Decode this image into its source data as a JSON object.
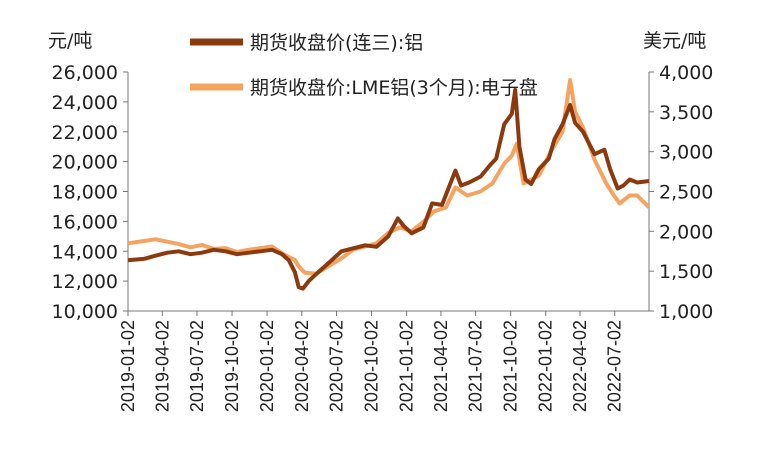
{
  "chart_data": {
    "type": "line",
    "left_unit": "元/吨",
    "right_unit": "美元/吨",
    "left_ylim": [
      10000,
      26000
    ],
    "right_ylim": [
      1000,
      4000
    ],
    "left_ticks": [
      "10,000",
      "12,000",
      "14,000",
      "16,000",
      "18,000",
      "20,000",
      "22,000",
      "24,000",
      "26,000"
    ],
    "right_ticks": [
      "1,000",
      "1,500",
      "2,000",
      "2,500",
      "3,000",
      "3,500",
      "4,000"
    ],
    "x_ticks": [
      "2019-01-02",
      "2019-04-02",
      "2019-07-02",
      "2019-10-02",
      "2020-01-02",
      "2020-04-02",
      "2020-07-02",
      "2020-10-02",
      "2021-01-02",
      "2021-04-02",
      "2021-07-02",
      "2021-10-02",
      "2022-01-02",
      "2022-04-02",
      "2022-07-02"
    ],
    "x_range": [
      "2019-01-02",
      "2022-09-30"
    ],
    "series": [
      {
        "name": "期货收盘价(连三):铝",
        "axis": "left",
        "color": "#8B3A0F",
        "points": [
          [
            "2019-01-02",
            13400
          ],
          [
            "2019-02-15",
            13500
          ],
          [
            "2019-03-15",
            13700
          ],
          [
            "2019-04-15",
            13900
          ],
          [
            "2019-05-15",
            14000
          ],
          [
            "2019-06-15",
            13800
          ],
          [
            "2019-07-15",
            13900
          ],
          [
            "2019-08-15",
            14100
          ],
          [
            "2019-09-15",
            14000
          ],
          [
            "2019-10-15",
            13800
          ],
          [
            "2019-11-15",
            13900
          ],
          [
            "2019-12-15",
            14000
          ],
          [
            "2020-01-15",
            14100
          ],
          [
            "2020-02-10",
            13800
          ],
          [
            "2020-02-28",
            13400
          ],
          [
            "2020-03-15",
            12600
          ],
          [
            "2020-03-25",
            11600
          ],
          [
            "2020-04-05",
            11500
          ],
          [
            "2020-04-20",
            12000
          ],
          [
            "2020-05-15",
            12600
          ],
          [
            "2020-06-15",
            13300
          ],
          [
            "2020-07-15",
            14000
          ],
          [
            "2020-08-15",
            14200
          ],
          [
            "2020-09-15",
            14400
          ],
          [
            "2020-10-15",
            14300
          ],
          [
            "2020-11-15",
            15000
          ],
          [
            "2020-12-10",
            16200
          ],
          [
            "2020-12-25",
            15700
          ],
          [
            "2021-01-15",
            15200
          ],
          [
            "2021-02-15",
            15600
          ],
          [
            "2021-03-10",
            17200
          ],
          [
            "2021-04-05",
            17100
          ],
          [
            "2021-05-10",
            19400
          ],
          [
            "2021-05-25",
            18400
          ],
          [
            "2021-06-15",
            18600
          ],
          [
            "2021-07-15",
            19000
          ],
          [
            "2021-08-10",
            19800
          ],
          [
            "2021-08-25",
            20200
          ],
          [
            "2021-09-15",
            22500
          ],
          [
            "2021-10-05",
            23200
          ],
          [
            "2021-10-14",
            24800
          ],
          [
            "2021-10-25",
            21000
          ],
          [
            "2021-11-10",
            18800
          ],
          [
            "2021-11-25",
            18500
          ],
          [
            "2021-12-15",
            19500
          ],
          [
            "2022-01-10",
            20200
          ],
          [
            "2022-01-25",
            21500
          ],
          [
            "2022-02-15",
            22500
          ],
          [
            "2022-03-07",
            23800
          ],
          [
            "2022-03-20",
            22600
          ],
          [
            "2022-04-10",
            22000
          ],
          [
            "2022-05-10",
            20500
          ],
          [
            "2022-06-05",
            20800
          ],
          [
            "2022-06-20",
            19500
          ],
          [
            "2022-07-10",
            18200
          ],
          [
            "2022-07-25",
            18400
          ],
          [
            "2022-08-10",
            18800
          ],
          [
            "2022-08-30",
            18600
          ],
          [
            "2022-09-30",
            18700
          ]
        ]
      },
      {
        "name": "期货收盘价:LME铝(3个月):电子盘",
        "axis": "right",
        "color": "#F4A460",
        "points": [
          [
            "2019-01-02",
            1850
          ],
          [
            "2019-02-15",
            1880
          ],
          [
            "2019-03-15",
            1900
          ],
          [
            "2019-04-15",
            1870
          ],
          [
            "2019-05-15",
            1840
          ],
          [
            "2019-06-15",
            1800
          ],
          [
            "2019-07-15",
            1830
          ],
          [
            "2019-08-15",
            1780
          ],
          [
            "2019-09-15",
            1790
          ],
          [
            "2019-10-15",
            1740
          ],
          [
            "2019-11-15",
            1770
          ],
          [
            "2019-12-15",
            1790
          ],
          [
            "2020-01-15",
            1810
          ],
          [
            "2020-02-15",
            1710
          ],
          [
            "2020-03-15",
            1640
          ],
          [
            "2020-03-25",
            1560
          ],
          [
            "2020-04-10",
            1480
          ],
          [
            "2020-05-10",
            1470
          ],
          [
            "2020-06-10",
            1560
          ],
          [
            "2020-07-15",
            1660
          ],
          [
            "2020-08-15",
            1770
          ],
          [
            "2020-09-15",
            1810
          ],
          [
            "2020-10-15",
            1850
          ],
          [
            "2020-11-15",
            1980
          ],
          [
            "2020-12-15",
            2050
          ],
          [
            "2021-01-15",
            2000
          ],
          [
            "2021-02-15",
            2120
          ],
          [
            "2021-03-15",
            2250
          ],
          [
            "2021-04-15",
            2300
          ],
          [
            "2021-05-10",
            2550
          ],
          [
            "2021-06-10",
            2450
          ],
          [
            "2021-07-15",
            2500
          ],
          [
            "2021-08-15",
            2600
          ],
          [
            "2021-09-15",
            2850
          ],
          [
            "2021-10-05",
            2950
          ],
          [
            "2021-10-18",
            3100
          ],
          [
            "2021-11-05",
            2600
          ],
          [
            "2021-11-25",
            2650
          ],
          [
            "2021-12-15",
            2700
          ],
          [
            "2022-01-15",
            3000
          ],
          [
            "2022-02-15",
            3250
          ],
          [
            "2022-03-07",
            3900
          ],
          [
            "2022-03-20",
            3500
          ],
          [
            "2022-04-10",
            3300
          ],
          [
            "2022-05-10",
            2900
          ],
          [
            "2022-06-10",
            2600
          ],
          [
            "2022-06-30",
            2450
          ],
          [
            "2022-07-15",
            2350
          ],
          [
            "2022-08-10",
            2450
          ],
          [
            "2022-08-30",
            2450
          ],
          [
            "2022-09-30",
            2300
          ]
        ]
      }
    ]
  }
}
